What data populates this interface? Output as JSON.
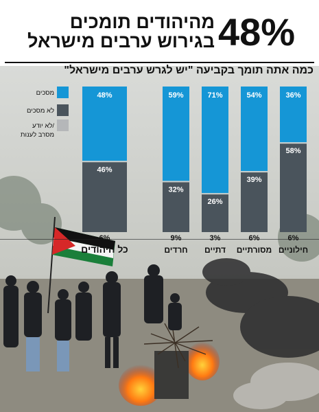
{
  "headline": {
    "percent": "48%",
    "line1": "מהיהודים תומכים",
    "line2": "בגירוש ערבים מישראל"
  },
  "question": "כמה אתה תומך בקביעה \"יש לגרש ערבים מישראל\"",
  "colors": {
    "agree": "#1596d6",
    "disagree": "#4a545c",
    "unknown": "#b5b7b9"
  },
  "chart_data": {
    "type": "bar",
    "stacked": true,
    "categories": [
      "כל היהודים",
      "חרדים",
      "דתיים",
      "מסורתיים",
      "חילוניים"
    ],
    "series": [
      {
        "name": "מסכים",
        "values": [
          48,
          59,
          71,
          54,
          36
        ],
        "labels": [
          "48%",
          "59%",
          "71%",
          "54%",
          "36%"
        ]
      },
      {
        "name": "לא מסכים",
        "values": [
          46,
          32,
          26,
          39,
          58
        ],
        "labels": [
          "46%",
          "32%",
          "26%",
          "39%",
          "58%"
        ]
      },
      {
        "name": "לא יודע/ מסרב לענות",
        "values": [
          6,
          9,
          3,
          6,
          6
        ],
        "labels": [
          "6%",
          "9%",
          "3%",
          "6%",
          "6%"
        ]
      }
    ],
    "legend": {
      "position": "left",
      "items": [
        {
          "label": "מסכים",
          "color": "#1596d6"
        },
        {
          "label": "לא מסכים",
          "color": "#4a545c"
        },
        {
          "label_lines": [
            "לא יודע/",
            "מסרב לענות"
          ],
          "color": "#b5b7b9"
        }
      ]
    }
  }
}
